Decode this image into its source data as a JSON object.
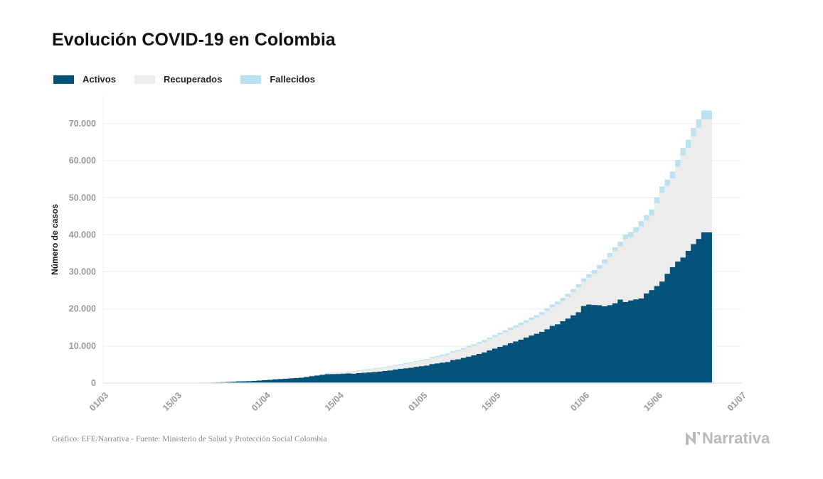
{
  "title": "Evolución COVID-19 en Colombia",
  "footer": "Gráfico: EFE/Narrativa - Fuente: Ministerio de Salud y Protección Social Colombia",
  "logo": "Narrativa",
  "colors": {
    "activos": "#02527a",
    "recuperados": "#ececec",
    "fallecidos": "#bbe2ef"
  },
  "chart_data": {
    "type": "bar",
    "stacked": true,
    "title": "Evolución COVID-19 en Colombia",
    "xlabel": "",
    "ylabel": "Número de casos",
    "ylim": [
      0,
      77000
    ],
    "xlim": [
      "01/03",
      "01/07"
    ],
    "grid": true,
    "legend_position": "top-left",
    "x_ticks": [
      "01/03",
      "15/03",
      "01/04",
      "15/04",
      "01/05",
      "15/05",
      "01/06",
      "15/06",
      "01/07"
    ],
    "y_ticks": [
      0,
      10000,
      20000,
      30000,
      40000,
      50000,
      60000,
      70000
    ],
    "y_tick_labels": [
      "0",
      "10.000",
      "20.000",
      "30.000",
      "40.000",
      "50.000",
      "60.000",
      "70.000"
    ],
    "dates": [
      "08/03",
      "09/03",
      "10/03",
      "11/03",
      "12/03",
      "13/03",
      "14/03",
      "15/03",
      "16/03",
      "17/03",
      "18/03",
      "19/03",
      "20/03",
      "21/03",
      "22/03",
      "23/03",
      "24/03",
      "25/03",
      "26/03",
      "27/03",
      "28/03",
      "29/03",
      "30/03",
      "31/03",
      "01/04",
      "02/04",
      "03/04",
      "04/04",
      "05/04",
      "06/04",
      "07/04",
      "08/04",
      "09/04",
      "10/04",
      "11/04",
      "12/04",
      "13/04",
      "14/04",
      "15/04",
      "16/04",
      "17/04",
      "18/04",
      "19/04",
      "20/04",
      "21/04",
      "22/04",
      "23/04",
      "24/04",
      "25/04",
      "26/04",
      "27/04",
      "28/04",
      "29/04",
      "30/04",
      "01/05",
      "02/05",
      "03/05",
      "04/05",
      "05/05",
      "06/05",
      "07/05",
      "08/05",
      "09/05",
      "10/05",
      "11/05",
      "12/05",
      "13/05",
      "14/05",
      "15/05",
      "16/05",
      "17/05",
      "18/05",
      "19/05",
      "20/05",
      "21/05",
      "22/05",
      "23/05",
      "24/05",
      "25/05",
      "26/05",
      "27/05",
      "28/05",
      "29/05",
      "30/05",
      "31/05",
      "01/06",
      "02/06",
      "03/06",
      "04/06",
      "05/06",
      "06/06",
      "07/06",
      "08/06",
      "09/06",
      "10/06",
      "11/06",
      "12/06",
      "13/06",
      "14/06",
      "15/06",
      "16/06",
      "17/06",
      "18/06",
      "19/06",
      "20/06",
      "21/06",
      "22/06",
      "23/06",
      "24/06",
      "25/06"
    ],
    "series": [
      {
        "name": "Activos",
        "values": [
          1,
          1,
          1,
          3,
          3,
          9,
          13,
          16,
          24,
          45,
          57,
          75,
          102,
          108,
          145,
          195,
          232,
          301,
          372,
          462,
          477,
          523,
          592,
          682,
          771,
          873,
          1023,
          1103,
          1187,
          1289,
          1362,
          1445,
          1630,
          1876,
          2020,
          2196,
          2395,
          2442,
          2470,
          2552,
          2620,
          2539,
          2683,
          2778,
          2902,
          2983,
          3109,
          3262,
          3419,
          3653,
          3842,
          4002,
          4134,
          4390,
          4573,
          4729,
          5141,
          5329,
          5521,
          5690,
          6221,
          6414,
          6796,
          7153,
          7481,
          7863,
          8279,
          8808,
          9308,
          9789,
          10210,
          10756,
          11249,
          11734,
          12272,
          12832,
          13318,
          13809,
          14534,
          15432,
          15881,
          16707,
          17421,
          18294,
          19135,
          20796,
          21184,
          21078,
          21024,
          20709,
          21033,
          21536,
          22530,
          21900,
          22300,
          22600,
          22850,
          24200,
          25100,
          26200,
          27400,
          29500,
          31300,
          32800,
          33900,
          35700,
          37500,
          38900,
          40700,
          40700
        ]
      },
      {
        "name": "Recuperados",
        "values": [
          0,
          0,
          0,
          0,
          0,
          0,
          0,
          0,
          0,
          0,
          0,
          0,
          0,
          0,
          0,
          1,
          1,
          2,
          3,
          4,
          8,
          10,
          10,
          10,
          15,
          17,
          25,
          39,
          55,
          85,
          88,
          88,
          100,
          123,
          134,
          197,
          214,
          225,
          270,
          300,
          354,
          550,
          603,
          677,
          711,
          805,
          844,
          888,
          927,
          1003,
          1067,
          1133,
          1210,
          1290,
          1360,
          1485,
          1551,
          1632,
          1807,
          1925,
          2014,
          2148,
          2253,
          2470,
          2569,
          2737,
          2855,
          2971,
          3112,
          3296,
          3460,
          3621,
          3751,
          3969,
          4050,
          4225,
          4360,
          4640,
          4938,
          5016,
          5350,
          5520,
          5880,
          6250,
          6700,
          6550,
          7260,
          8440,
          9800,
          11600,
          13000,
          14000,
          14414,
          16912,
          17111,
          18105,
          19399,
          19656,
          20213,
          22350,
          23996,
          23705,
          23945,
          25542,
          27509,
          27807,
          29099,
          29973,
          30468,
          30468
        ]
      },
      {
        "name": "Fallecidos",
        "values": [
          0,
          0,
          0,
          0,
          0,
          0,
          0,
          0,
          0,
          0,
          0,
          0,
          0,
          0,
          0,
          0,
          2,
          3,
          3,
          4,
          6,
          6,
          6,
          10,
          12,
          16,
          17,
          19,
          25,
          32,
          35,
          46,
          50,
          55,
          69,
          80,
          100,
          109,
          112,
          127,
          131,
          144,
          153,
          166,
          179,
          189,
          196,
          206,
          215,
          225,
          233,
          244,
          253,
          269,
          278,
          293,
          314,
          324,
          340,
          358,
          378,
          397,
          407,
          428,
          445,
          463,
          479,
          493,
          510,
          525,
          546,
          562,
          574,
          592,
          613,
          630,
          652,
          682,
          705,
          727,
          750,
          776,
          803,
          822,
          853,
          890,
          939,
          975,
          1009,
          1045,
          1087,
          1099,
          1205,
          1274,
          1308,
          1373,
          1433,
          1488,
          1545,
          1592,
          1667,
          1726,
          1801,
          1875,
          2045,
          2126,
          2237,
          2310,
          2404,
          2404
        ]
      }
    ]
  }
}
